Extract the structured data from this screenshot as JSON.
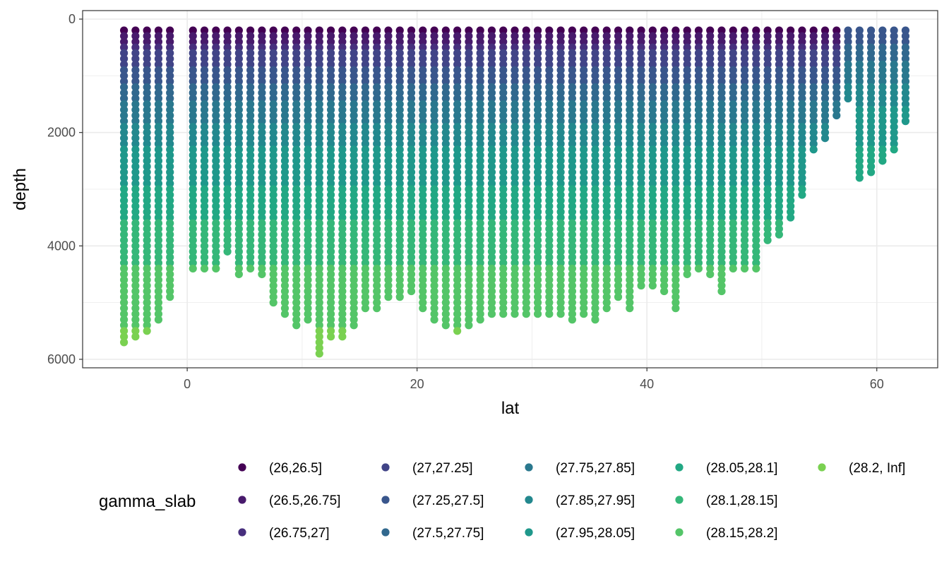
{
  "chart_data": {
    "type": "scatter",
    "xlabel": "lat",
    "ylabel": "depth",
    "x_ticks": [
      0,
      20,
      40,
      60
    ],
    "y_ticks": [
      0,
      2000,
      4000,
      6000
    ],
    "xlim": [
      -9.1,
      65.3
    ],
    "ylim_reversed": [
      -150,
      6150
    ],
    "grid": true,
    "legend_position": "bottom",
    "legend": {
      "title": "gamma_slab",
      "entries": [
        {
          "label": "(26,26.5]",
          "color": "#440154"
        },
        {
          "label": "(26.5,26.75]",
          "color": "#481A6C"
        },
        {
          "label": "(26.75,27]",
          "color": "#472F7D"
        },
        {
          "label": "(27,27.25]",
          "color": "#414487"
        },
        {
          "label": "(27.25,27.5]",
          "color": "#39568C"
        },
        {
          "label": "(27.5,27.75]",
          "color": "#31688E"
        },
        {
          "label": "(27.75,27.85]",
          "color": "#2A788E"
        },
        {
          "label": "(27.85,27.95]",
          "color": "#23888E"
        },
        {
          "label": "(27.95,28.05]",
          "color": "#1F988B"
        },
        {
          "label": "(28.05,28.1]",
          "color": "#22A884"
        },
        {
          "label": "(28.1,28.15]",
          "color": "#35B779"
        },
        {
          "label": "(28.15,28.2]",
          "color": "#54C568"
        },
        {
          "label": "(28.2, Inf]",
          "color": "#7AD151"
        }
      ]
    },
    "stations_lat": [
      -5.5,
      -4.5,
      -3.5,
      -2.5,
      -1.5,
      0.5,
      1.5,
      2.5,
      3.5,
      4.5,
      5.5,
      6.5,
      7.5,
      8.5,
      9.5,
      10.5,
      11.5,
      12.5,
      13.5,
      14.5,
      15.5,
      16.5,
      17.5,
      18.5,
      19.5,
      20.5,
      21.5,
      22.5,
      23.5,
      24.5,
      25.5,
      26.5,
      27.5,
      28.5,
      29.5,
      30.5,
      31.5,
      32.5,
      33.5,
      34.5,
      35.5,
      36.5,
      37.5,
      38.5,
      39.5,
      40.5,
      41.5,
      42.5,
      43.5,
      44.5,
      45.5,
      46.5,
      47.5,
      48.5,
      49.5,
      50.5,
      51.5,
      52.5,
      53.5,
      54.5,
      55.5,
      56.5,
      57.5,
      58.5,
      59.5,
      60.5,
      61.5,
      62.5
    ],
    "stations_maxdepth": [
      5750,
      5650,
      5550,
      5300,
      4950,
      4450,
      4400,
      4400,
      4150,
      4500,
      4400,
      4550,
      5050,
      5250,
      5400,
      5350,
      5950,
      5600,
      5650,
      5400,
      5150,
      5100,
      4950,
      4900,
      4800,
      5150,
      5300,
      5450,
      5500,
      5400,
      5350,
      5250,
      5200,
      5200,
      5200,
      5250,
      5200,
      5250,
      5300,
      5250,
      5300,
      5150,
      4900,
      5100,
      4700,
      4700,
      4850,
      5100,
      4550,
      4400,
      4500,
      4850,
      4450,
      4400,
      4400,
      3950,
      3850,
      3550,
      3150,
      2300,
      2100,
      1700,
      1450,
      2800,
      2750,
      2500,
      2350,
      1800
    ],
    "dot_spacing_m": 100,
    "color_depth_breaks": [
      300,
      450,
      600,
      850,
      1150,
      1500,
      1850,
      2300,
      3000,
      3600,
      4350,
      5450
    ],
    "northern_color_shift": {
      "lat_min": 57,
      "shallower_m": 700
    }
  }
}
